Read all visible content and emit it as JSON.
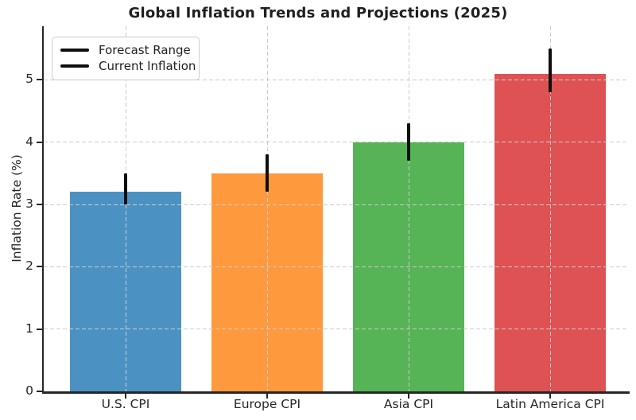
{
  "chart_data": {
    "type": "bar",
    "title": "Global Inflation Trends and Projections (2025)",
    "xlabel": "",
    "ylabel": "Inflation Rate (%)",
    "categories": [
      "U.S. CPI",
      "Europe CPI",
      "Asia CPI",
      "Latin America CPI"
    ],
    "values": [
      3.2,
      3.5,
      4.0,
      5.1
    ],
    "error_bars": {
      "ranges": [
        [
          3.0,
          3.5
        ],
        [
          3.2,
          3.8
        ],
        [
          3.7,
          4.3
        ],
        [
          4.8,
          5.5
        ]
      ],
      "color": "#0e0e0e"
    },
    "bar_colors": [
      "#4b92c3",
      "#ff993e",
      "#56b356",
      "#de5253"
    ],
    "ylim": [
      0,
      5.86
    ],
    "yticks": [
      0,
      1,
      2,
      3,
      4,
      5
    ],
    "grid": {
      "visible": true,
      "style": "dashed",
      "color": "#cbcbcb",
      "drawn_above_bars": true
    },
    "legend": {
      "position": "upper left",
      "entries": [
        {
          "label": "Forecast Range",
          "marker_color": "#0e0e0e"
        },
        {
          "label": "Current Inflation",
          "marker_color": "#0e0e0e"
        }
      ]
    }
  }
}
